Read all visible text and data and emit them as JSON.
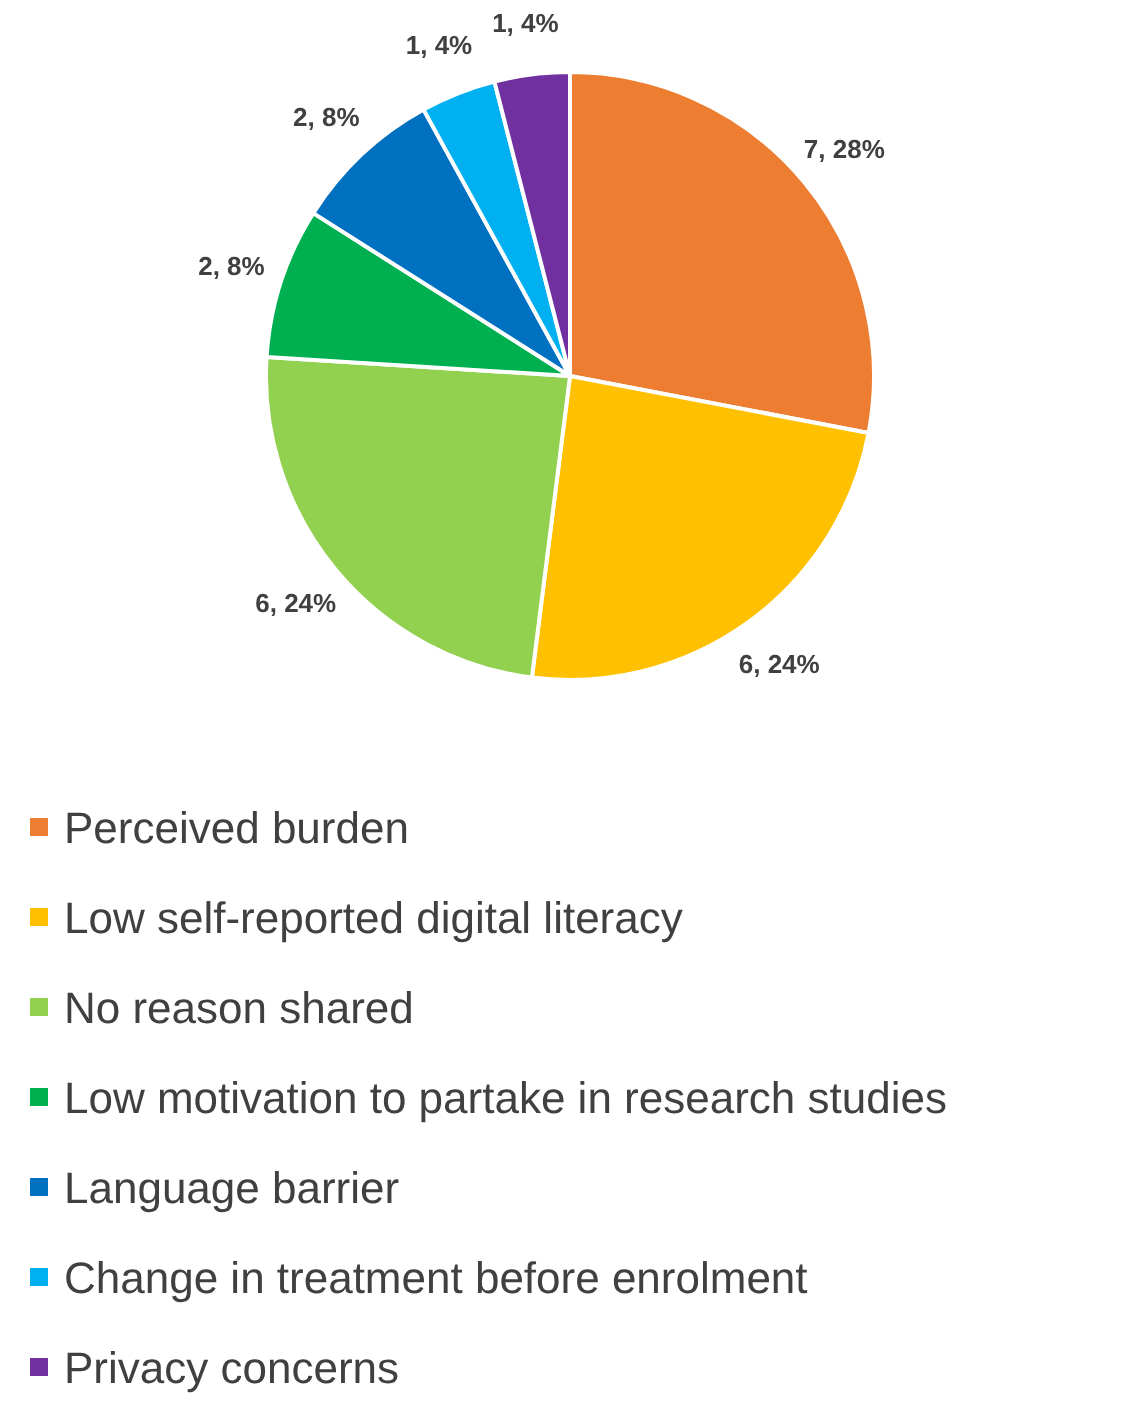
{
  "chart_data": {
    "type": "pie",
    "categories": [
      "Perceived burden",
      "Low self-reported digital literacy",
      "No reason shared",
      "Low motivation to partake in research studies",
      "Language barrier",
      "Change in treatment before enrolment",
      "Privacy concerns"
    ],
    "values": [
      7,
      6,
      6,
      2,
      2,
      1,
      1
    ],
    "value_labels": [
      "7, 28%",
      "6, 24%",
      "6, 24%",
      "2, 8%",
      "2, 8%",
      "1, 4%",
      "1, 4%"
    ],
    "colors": [
      "#ed7d31",
      "#ffc000",
      "#92d050",
      "#00b050",
      "#0070c0",
      "#00b0f0",
      "#7030a0"
    ],
    "legend": "bottom"
  }
}
